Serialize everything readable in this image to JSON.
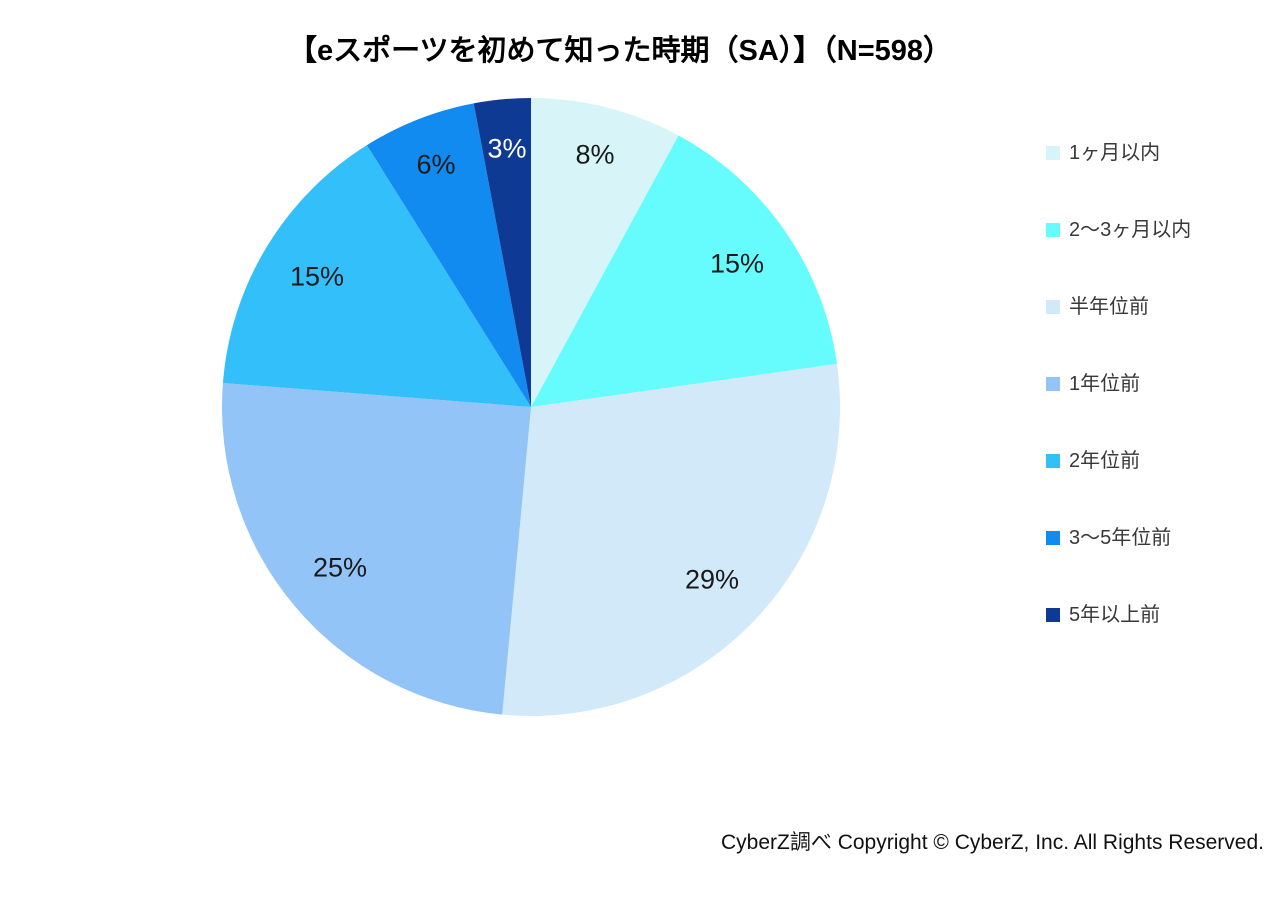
{
  "title": "【eスポーツを初めて知った時期（SA）】（N=598）",
  "footer": "CyberZ調べ Copyright © CyberZ, Inc. All Rights Reserved.",
  "chart_data": {
    "type": "pie",
    "title": "【eスポーツを初めて知った時期（SA）】（N=598）",
    "sample_size": 598,
    "legend_position": "right",
    "start_angle_deg": 0,
    "direction": "clockwise",
    "slices": [
      {
        "label": "1ヶ月以内",
        "value": 8,
        "display": "8%",
        "color": "#d7f5f9",
        "label_color": "#1a1a1a"
      },
      {
        "label": "2～3ヶ月以内",
        "value": 15,
        "display": "15%",
        "color": "#66fbfd",
        "label_color": "#1a1a1a"
      },
      {
        "label": "半年位前",
        "value": 29,
        "display": "29%",
        "color": "#d2e9fa",
        "label_color": "#1a1a1a"
      },
      {
        "label": "1年位前",
        "value": 25,
        "display": "25%",
        "color": "#92c4f7",
        "label_color": "#1a1a1a"
      },
      {
        "label": "2年位前",
        "value": 15,
        "display": "15%",
        "color": "#33bffa",
        "label_color": "#1a1a1a"
      },
      {
        "label": "3～5年位前",
        "value": 6,
        "display": "6%",
        "color": "#128bf0",
        "label_color": "#1a1a1a"
      },
      {
        "label": "5年以上前",
        "value": 3,
        "display": "3%",
        "color": "#0e3a94",
        "label_color": "#ffffff"
      }
    ]
  }
}
